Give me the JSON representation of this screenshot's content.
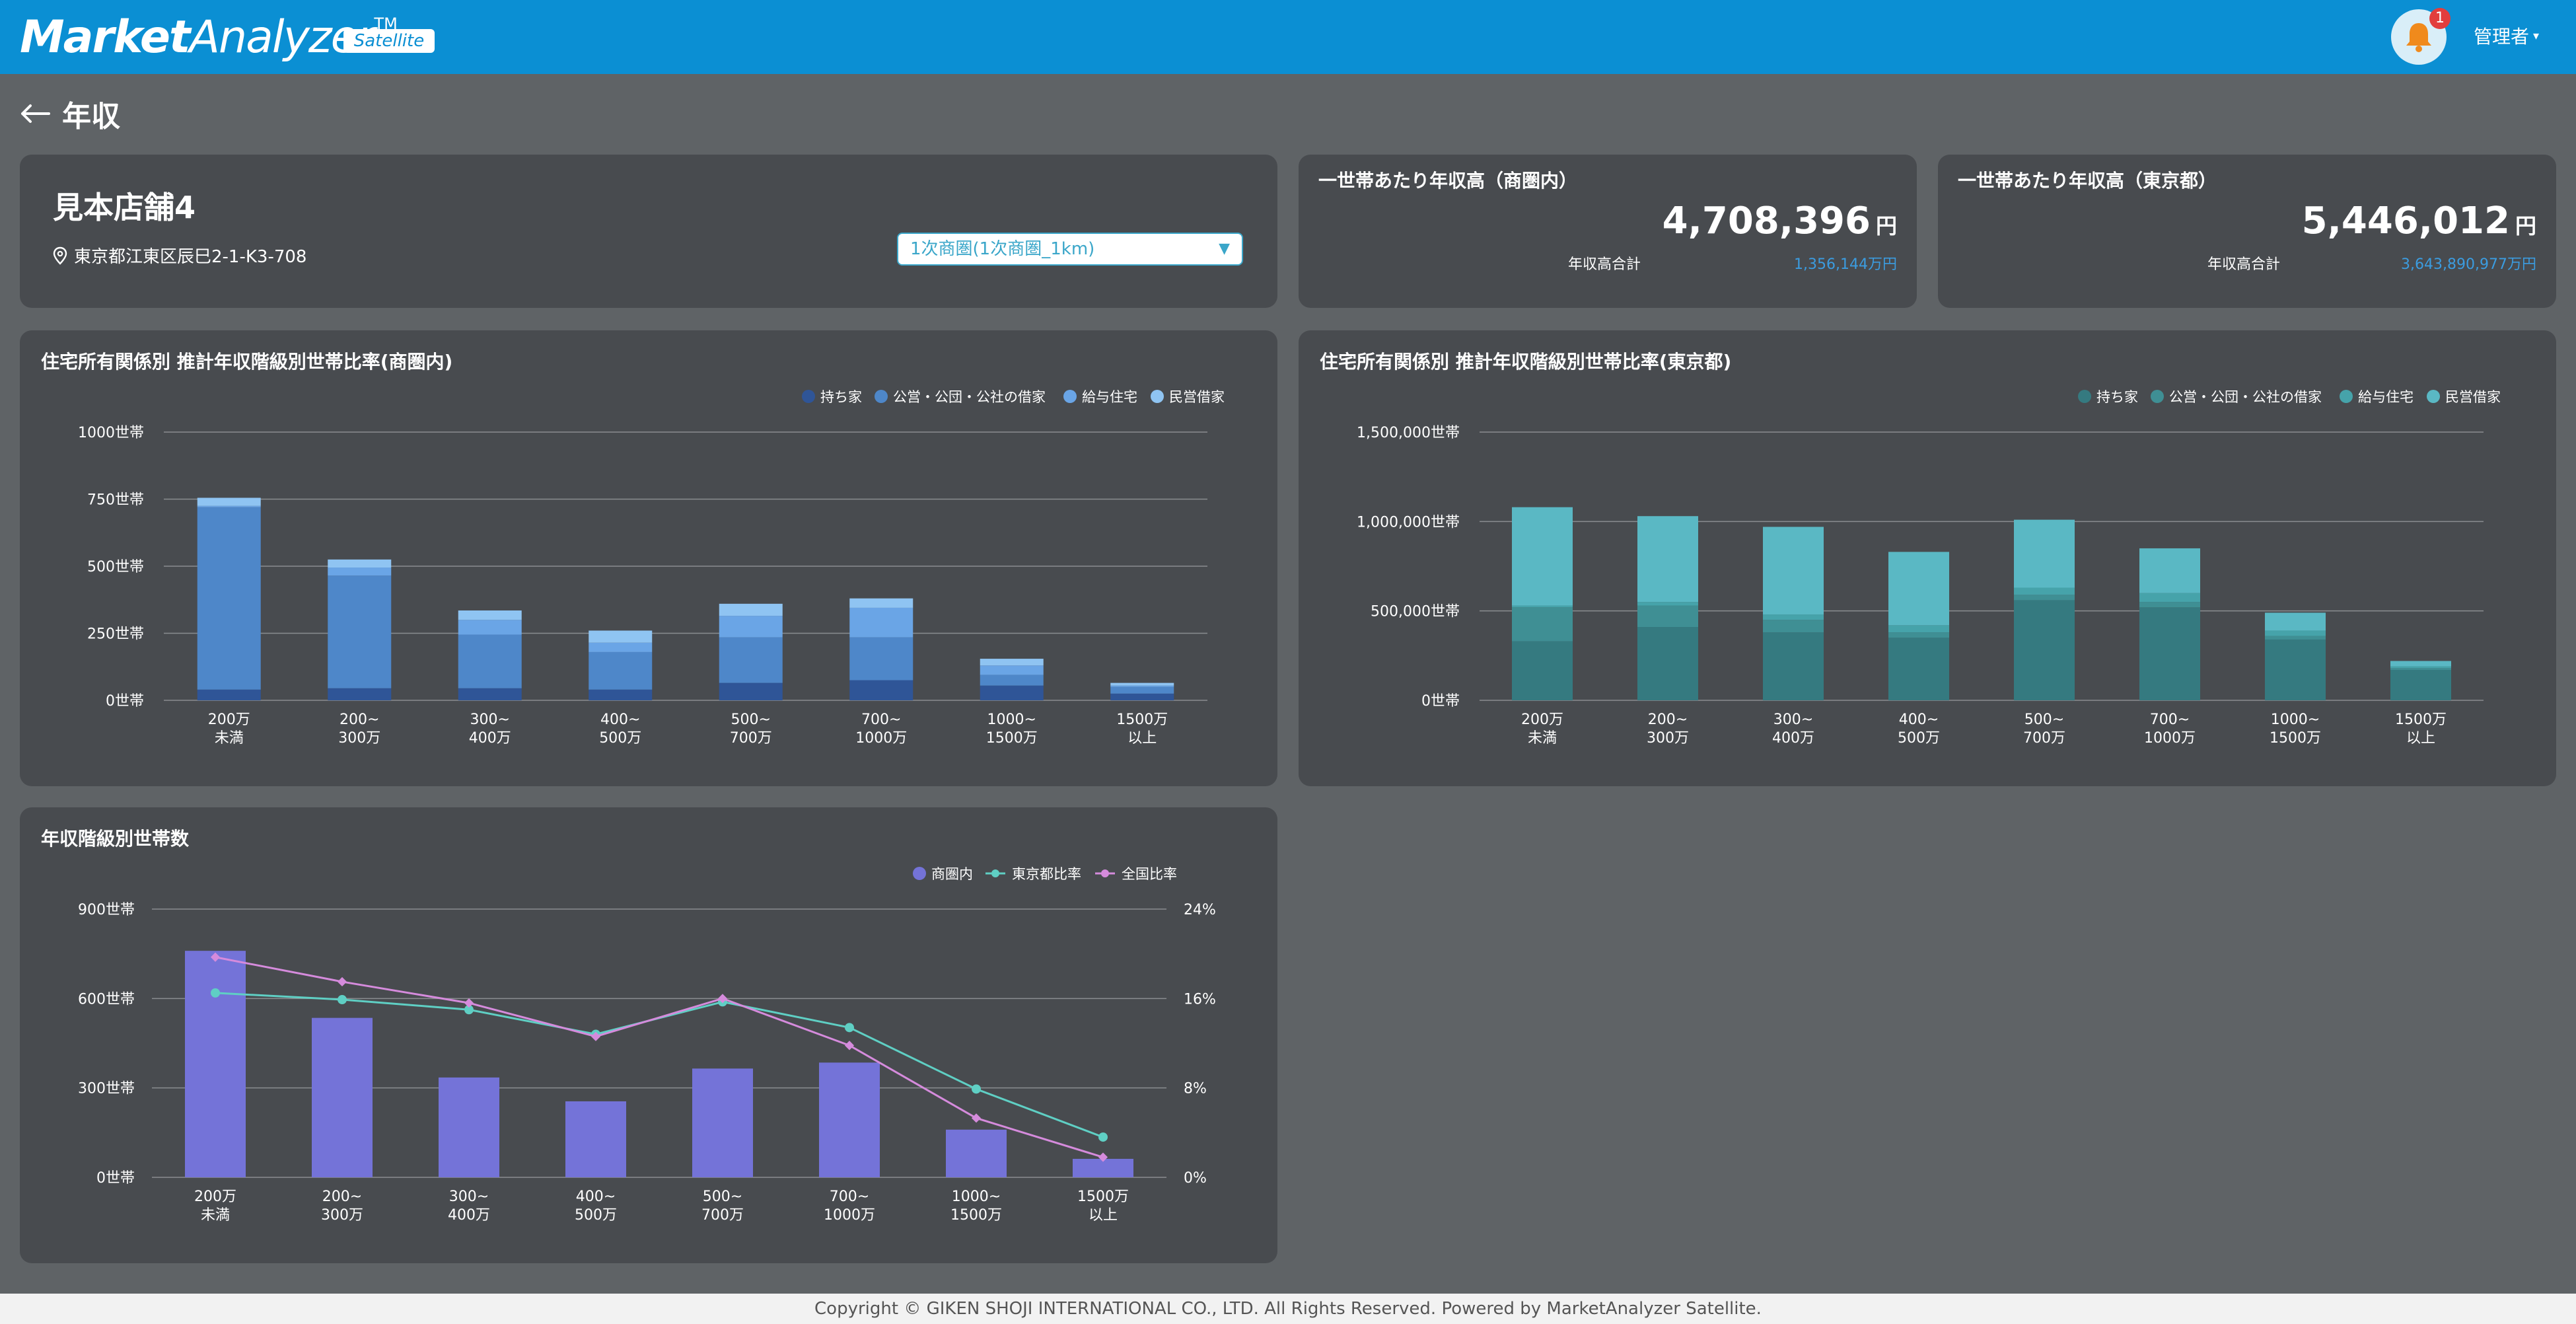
{
  "app": {
    "logo_bold": "Market",
    "logo_rest": "Analyzer",
    "logo_tm": "TM",
    "badge": "Satellite",
    "notification_count": "1",
    "user_menu": "管理者"
  },
  "page": {
    "title": "年収"
  },
  "store": {
    "name": "見本店舗4",
    "address": "東京都江東区辰巳2-1-K3-708",
    "trade_area_selected": "1次商圏(1次商圏_1km)"
  },
  "kpis": [
    {
      "title": "一世帯あたり年収高（商圏内）",
      "value": "4,708,396",
      "unit": "円",
      "sub_label": "年収高合計",
      "sub_value": "1,356,144万円"
    },
    {
      "title": "一世帯あたり年収高（東京都）",
      "value": "5,446,012",
      "unit": "円",
      "sub_label": "年収高合計",
      "sub_value": "3,643,890,977万円"
    }
  ],
  "colors": {
    "blue_series": [
      "#2f5597",
      "#4e87c9",
      "#6aa5e6",
      "#8fc4f2"
    ],
    "teal_series": [
      "#357a80",
      "#3f8f94",
      "#46a3aa",
      "#5ab8c4"
    ],
    "bar_purple": "#7473d8",
    "line_teal": "#5fcfc4",
    "line_pink": "#d58bdc",
    "grid": "#8a8d90"
  },
  "chart_data": [
    {
      "id": "area-housing",
      "type": "bar",
      "stacked": true,
      "title": "住宅所有関係別 推計年収階級別世帯比率(商圏内)",
      "categories": [
        "200万\n未満",
        "200~\n300万",
        "300~\n400万",
        "400~\n500万",
        "500~\n700万",
        "700~\n1000万",
        "1000~\n1500万",
        "1500万\n以上"
      ],
      "yticks": [
        "1000世帯",
        "750世帯",
        "500世帯",
        "250世帯",
        "0世帯"
      ],
      "ylim": [
        0,
        1000
      ],
      "legend": "top-right",
      "series": [
        {
          "name": "持ち家",
          "values": [
            40,
            45,
            45,
            40,
            65,
            75,
            55,
            25
          ]
        },
        {
          "name": "公営・公団・公社の借家",
          "values": [
            680,
            420,
            200,
            140,
            170,
            160,
            40,
            25
          ]
        },
        {
          "name": "給与住宅",
          "values": [
            5,
            30,
            55,
            35,
            80,
            110,
            35,
            5
          ]
        },
        {
          "name": "民営借家",
          "values": [
            30,
            30,
            35,
            45,
            45,
            35,
            25,
            10
          ]
        }
      ]
    },
    {
      "id": "tokyo-housing",
      "type": "bar",
      "stacked": true,
      "title": "住宅所有関係別 推計年収階級別世帯比率(東京都)",
      "categories": [
        "200万\n未満",
        "200~\n300万",
        "300~\n400万",
        "400~\n500万",
        "500~\n700万",
        "700~\n1000万",
        "1000~\n1500万",
        "1500万\n以上"
      ],
      "yticks": [
        "1,500,000世帯",
        "1,000,000世帯",
        "500,000世帯",
        "0世帯"
      ],
      "ylim": [
        0,
        1500000
      ],
      "legend": "top-right",
      "series": [
        {
          "name": "持ち家",
          "values": [
            330000,
            410000,
            380000,
            350000,
            560000,
            520000,
            340000,
            170000
          ]
        },
        {
          "name": "公営・公団・公社の借家",
          "values": [
            190000,
            120000,
            70000,
            30000,
            30000,
            30000,
            20000,
            10000
          ]
        },
        {
          "name": "給与住宅",
          "values": [
            10000,
            20000,
            30000,
            40000,
            40000,
            50000,
            30000,
            10000
          ]
        },
        {
          "name": "民営借家",
          "values": [
            550000,
            480000,
            490000,
            410000,
            380000,
            250000,
            100000,
            30000
          ]
        }
      ]
    },
    {
      "id": "households",
      "type": "bar",
      "title": "年収階級別世帯数",
      "categories": [
        "200万\n未満",
        "200~\n300万",
        "300~\n400万",
        "400~\n500万",
        "500~\n700万",
        "700~\n1000万",
        "1000~\n1500万",
        "1500万\n以上"
      ],
      "yticks_left": [
        "900世帯",
        "600世帯",
        "300世帯",
        "0世帯"
      ],
      "yticks_right": [
        "24%",
        "16%",
        "8%",
        "0%"
      ],
      "ylim_left": [
        0,
        900
      ],
      "ylim_right": [
        0,
        24
      ],
      "legend": "top-right",
      "series": [
        {
          "name": "商圏内",
          "kind": "bar",
          "values": [
            760,
            535,
            335,
            255,
            365,
            385,
            160,
            62
          ]
        },
        {
          "name": "東京都比率",
          "kind": "line",
          "values": [
            16.5,
            15.9,
            15.0,
            12.8,
            15.7,
            13.4,
            7.9,
            3.6
          ]
        },
        {
          "name": "全国比率",
          "kind": "line",
          "values": [
            19.7,
            17.5,
            15.6,
            12.6,
            16.0,
            11.8,
            5.3,
            1.8
          ]
        }
      ]
    }
  ],
  "footer": {
    "copyright": "Copyright © GIKEN SHOJI INTERNATIONAL CO., LTD. All Rights Reserved. Powered by MarketAnalyzer Satellite."
  }
}
